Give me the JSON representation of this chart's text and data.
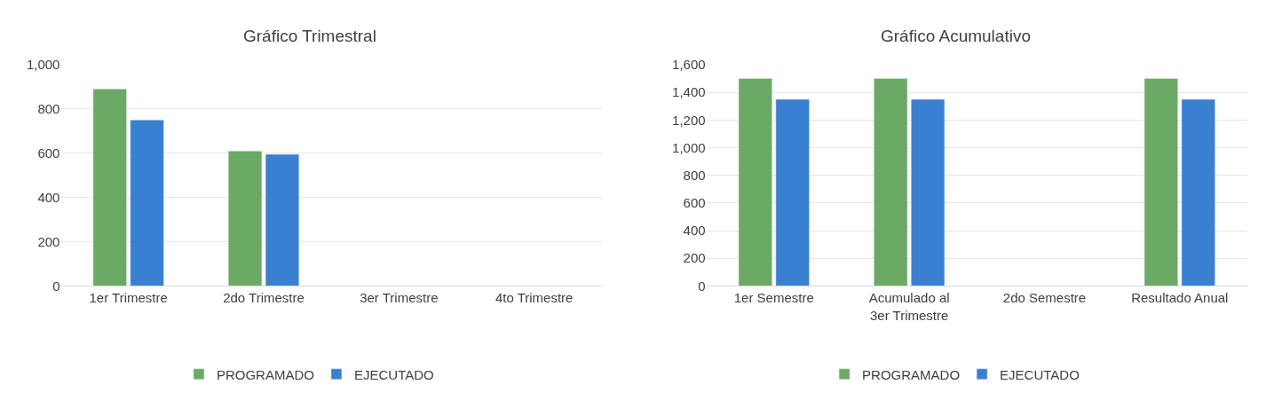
{
  "chart_data": [
    {
      "type": "bar",
      "title": "Gráfico Trimestral",
      "categories": [
        "1er Trimestre",
        "2do Trimestre",
        "3er Trimestre",
        "4to Trimestre"
      ],
      "series": [
        {
          "name": "PROGRAMADO",
          "color": "#6aaa64",
          "values": [
            890,
            610,
            null,
            null
          ]
        },
        {
          "name": "EJECUTADO",
          "color": "#3a80d0",
          "values": [
            750,
            595,
            null,
            null
          ]
        }
      ],
      "ylim": [
        0,
        1000
      ],
      "yticks": [
        0,
        {
          "value": 200,
          "label": "200"
        },
        {
          "value": 400,
          "label": "400"
        },
        {
          "value": 600,
          "label": "600"
        },
        {
          "value": 800,
          "label": "800"
        },
        {
          "value": 1000,
          "label": "1,000"
        }
      ],
      "grid": "y",
      "legend": "bottom"
    },
    {
      "type": "bar",
      "title": "Gráfico Acumulativo",
      "categories": [
        "1er Semestre",
        "Acumulado al\n3er Trimestre",
        "2do Semestre",
        "Resultado Anual"
      ],
      "series": [
        {
          "name": "PROGRAMADO",
          "color": "#6aaa64",
          "values": [
            1500,
            1500,
            null,
            1500
          ]
        },
        {
          "name": "EJECUTADO",
          "color": "#3a80d0",
          "values": [
            1350,
            1350,
            null,
            1350
          ]
        }
      ],
      "ylim": [
        0,
        1600
      ],
      "yticks": [
        0,
        200,
        400,
        600,
        800,
        {
          "value": 1000,
          "label": "1,000"
        },
        {
          "value": 1200,
          "label": "1,200"
        },
        {
          "value": 1400,
          "label": "1,400"
        },
        {
          "value": 1600,
          "label": "1,600"
        }
      ],
      "grid": "y",
      "legend": "bottom"
    }
  ]
}
